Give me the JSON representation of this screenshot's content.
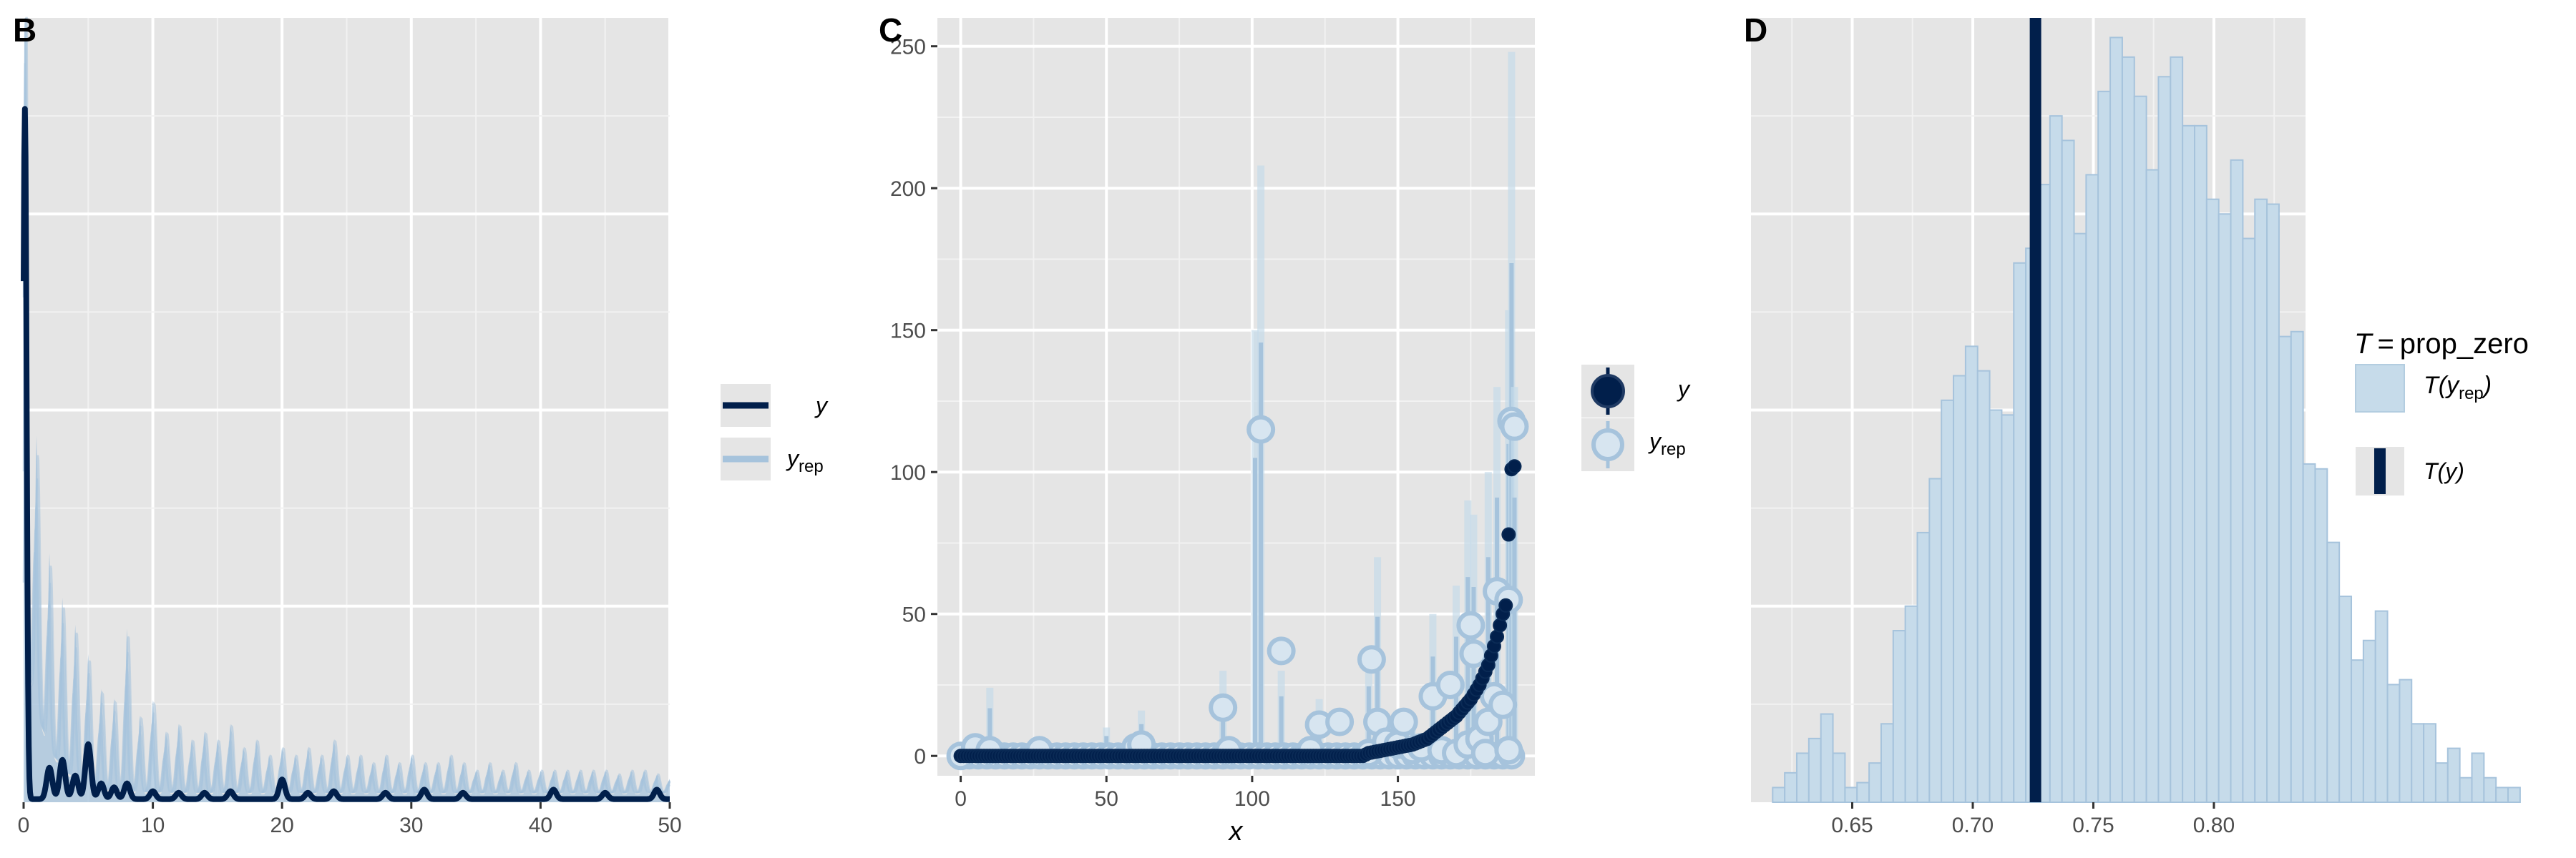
{
  "chart_data": [
    {
      "panel": "B",
      "type": "line",
      "xlim": [
        0,
        50
      ],
      "ylim": [
        0,
        1.0
      ],
      "x_ticks": [
        0,
        10,
        20,
        30,
        40,
        50
      ],
      "grid": true,
      "legend": {
        "position": "right",
        "entries": [
          {
            "label": "y",
            "color": "#011f4b"
          },
          {
            "label": "yrep",
            "label_main": "y",
            "label_sub": "rep",
            "color": "#a6c3dc"
          }
        ]
      },
      "series": [
        {
          "name": "y",
          "color": "#011f4b",
          "peaks": [
            [
              0.1,
              0.88
            ],
            [
              2,
              0.04
            ],
            [
              3,
              0.05
            ],
            [
              4,
              0.03
            ],
            [
              5,
              0.07
            ],
            [
              6,
              0.02
            ],
            [
              7,
              0.015
            ],
            [
              8,
              0.02
            ],
            [
              10,
              0.01
            ],
            [
              12,
              0.008
            ],
            [
              14,
              0.008
            ],
            [
              16,
              0.01
            ],
            [
              20,
              0.025
            ],
            [
              22,
              0.008
            ],
            [
              24,
              0.01
            ],
            [
              28,
              0.008
            ],
            [
              31,
              0.012
            ],
            [
              34,
              0.008
            ],
            [
              41,
              0.012
            ],
            [
              45,
              0.008
            ],
            [
              49,
              0.012
            ]
          ]
        },
        {
          "name": "yrep",
          "color": "#a6c3dc",
          "peaks": [
            [
              0.1,
              0.99
            ],
            [
              1,
              0.35
            ],
            [
              2,
              0.25
            ],
            [
              3,
              0.22
            ],
            [
              4,
              0.2
            ],
            [
              5,
              0.17
            ],
            [
              6,
              0.13
            ],
            [
              7,
              0.12
            ],
            [
              8,
              0.21
            ],
            [
              9,
              0.1
            ],
            [
              10,
              0.12
            ],
            [
              11,
              0.08
            ],
            [
              12,
              0.09
            ],
            [
              13,
              0.07
            ],
            [
              14,
              0.08
            ],
            [
              15,
              0.07
            ],
            [
              16,
              0.09
            ],
            [
              17,
              0.06
            ],
            [
              18,
              0.07
            ],
            [
              19,
              0.05
            ],
            [
              20,
              0.06
            ],
            [
              21,
              0.05
            ],
            [
              22,
              0.06
            ],
            [
              23,
              0.05
            ],
            [
              24,
              0.07
            ],
            [
              25,
              0.05
            ],
            [
              26,
              0.05
            ],
            [
              27,
              0.04
            ],
            [
              28,
              0.05
            ],
            [
              29,
              0.04
            ],
            [
              30,
              0.05
            ],
            [
              31,
              0.04
            ],
            [
              32,
              0.04
            ],
            [
              33,
              0.05
            ],
            [
              34,
              0.04
            ],
            [
              35,
              0.03
            ],
            [
              36,
              0.04
            ],
            [
              37,
              0.03
            ],
            [
              38,
              0.04
            ],
            [
              39,
              0.03
            ],
            [
              40,
              0.03
            ],
            [
              41,
              0.03
            ],
            [
              42,
              0.03
            ],
            [
              43,
              0.03
            ],
            [
              44,
              0.03
            ],
            [
              45,
              0.03
            ],
            [
              46,
              0.025
            ],
            [
              47,
              0.03
            ],
            [
              48,
              0.03
            ],
            [
              49,
              0.025
            ],
            [
              50,
              0.02
            ]
          ]
        }
      ]
    },
    {
      "panel": "C",
      "type": "scatter",
      "xlabel": "x",
      "xlim": [
        -8,
        197
      ],
      "ylim": [
        -7,
        260
      ],
      "x_ticks": [
        0,
        50,
        100,
        150
      ],
      "y_ticks": [
        0,
        50,
        100,
        150,
        200,
        250
      ],
      "grid": true,
      "legend": {
        "position": "right",
        "entries": [
          {
            "label": "y",
            "color": "#011f4b"
          },
          {
            "label": "yrep",
            "label_main": "y",
            "label_sub": "rep",
            "color": "#a6c3dc"
          }
        ]
      },
      "series": [
        {
          "name": "y",
          "color": "#011f4b",
          "curve": [
            [
              0,
              0
            ],
            [
              138,
              0
            ],
            [
              140,
              1
            ],
            [
              145,
              2
            ],
            [
              150,
              3
            ],
            [
              155,
              4
            ],
            [
              160,
              6
            ],
            [
              165,
              10
            ],
            [
              170,
              14
            ],
            [
              175,
              20
            ],
            [
              178,
              25
            ],
            [
              181,
              32
            ],
            [
              184,
              42
            ],
            [
              186,
              50
            ],
            [
              187,
              53
            ],
            [
              188,
              78
            ],
            [
              189,
              101
            ],
            [
              190,
              102
            ]
          ]
        },
        {
          "name": "yrep",
          "color": "#a6c3dc",
          "points": [
            [
              0,
              0
            ],
            [
              5,
              3
            ],
            [
              10,
              2
            ],
            [
              27,
              2
            ],
            [
              60,
              3
            ],
            [
              62,
              4
            ],
            [
              90,
              17
            ],
            [
              92,
              2
            ],
            [
              103,
              115
            ],
            [
              110,
              37
            ],
            [
              120,
              2
            ],
            [
              123,
              11
            ],
            [
              130,
              12
            ],
            [
              140,
              1
            ],
            [
              141,
              34
            ],
            [
              143,
              12
            ],
            [
              146,
              5
            ],
            [
              150,
              4
            ],
            [
              152,
              12
            ],
            [
              155,
              2
            ],
            [
              158,
              3
            ],
            [
              162,
              21
            ],
            [
              165,
              2
            ],
            [
              168,
              25
            ],
            [
              170,
              1
            ],
            [
              174,
              4
            ],
            [
              175,
              46
            ],
            [
              176,
              36
            ],
            [
              178,
              6
            ],
            [
              180,
              1
            ],
            [
              181,
              12
            ],
            [
              183,
              21
            ],
            [
              184,
              58
            ],
            [
              186,
              18
            ],
            [
              188,
              2
            ],
            [
              189,
              118
            ],
            [
              190,
              116
            ],
            [
              188,
              55
            ]
          ],
          "intervals": [
            [
              0,
              0,
              5
            ],
            [
              10,
              0,
              24
            ],
            [
              50,
              0,
              10
            ],
            [
              62,
              0,
              16
            ],
            [
              90,
              0,
              30
            ],
            [
              101,
              0,
              150
            ],
            [
              103,
              0,
              208
            ],
            [
              110,
              0,
              30
            ],
            [
              123,
              0,
              20
            ],
            [
              140,
              0,
              35
            ],
            [
              143,
              0,
              70
            ],
            [
              155,
              0,
              15
            ],
            [
              162,
              0,
              50
            ],
            [
              170,
              0,
              60
            ],
            [
              174,
              0,
              90
            ],
            [
              176,
              0,
              85
            ],
            [
              181,
              0,
              100
            ],
            [
              184,
              0,
              130
            ],
            [
              188,
              0,
              157
            ],
            [
              189,
              0,
              248
            ],
            [
              190,
              0,
              130
            ]
          ]
        }
      ]
    },
    {
      "panel": "D",
      "type": "bar",
      "stat": "T = prop_zero",
      "xlim": [
        0.608,
        0.838
      ],
      "ylim": [
        0,
        160
      ],
      "x_ticks": [
        0.65,
        0.7,
        0.75,
        0.8
      ],
      "x_tick_labels": [
        "0.65",
        "0.70",
        "0.75",
        "0.80"
      ],
      "grid": true,
      "bin_start": 0.617,
      "bin_width": 0.005,
      "counts": [
        3,
        6,
        10,
        13,
        18,
        10,
        3,
        4,
        8,
        16,
        35,
        40,
        55,
        66,
        82,
        87,
        93,
        88,
        80,
        79,
        110,
        113,
        126,
        140,
        135,
        116,
        128,
        145,
        156,
        152,
        144,
        129,
        148,
        152,
        138,
        138,
        123,
        120,
        131,
        115,
        123,
        122,
        95,
        96,
        69,
        68,
        53,
        42,
        29,
        33,
        39,
        24,
        25,
        16,
        16,
        8,
        11,
        5,
        10,
        5,
        3,
        3
      ],
      "observed_value": 0.726,
      "bar_color": "#c6dbea",
      "observed_color": "#011f4b",
      "legend": {
        "position": "right",
        "title": "T = prop_zero",
        "title_main": "T",
        "title_eq": "=",
        "title_stat": "prop_zero",
        "entries": [
          {
            "label": "T(yrep)",
            "label_main": "T(y",
            "label_sub": "rep",
            "label_close": ")"
          },
          {
            "label": "T(y)"
          }
        ]
      }
    }
  ],
  "panels": {
    "B": {
      "letter": "B",
      "x_tick_labels": [
        "0",
        "10",
        "20",
        "30",
        "40",
        "50"
      ]
    },
    "C": {
      "letter": "C",
      "x_tick_labels": [
        "0",
        "50",
        "100",
        "150"
      ],
      "y_tick_labels": [
        "0",
        "50",
        "100",
        "150",
        "200",
        "250"
      ],
      "xlabel": "x"
    },
    "D": {
      "letter": "D",
      "x_tick_labels": [
        "0.65",
        "0.70",
        "0.75",
        "0.80"
      ]
    }
  },
  "legend_labels": {
    "y_label": "y",
    "y_main": "y",
    "rep_sub": "rep",
    "T_label": "T",
    "prop_zero": "prop_zero",
    "T_y": "T(y)"
  },
  "colors": {
    "panel_bg": "#e5e5e5",
    "grid_major": "#ffffff",
    "dark": "#011f4b",
    "light": "#a6c3dc",
    "lighter": "#c6dbea",
    "tick_text": "#4d4d4d"
  }
}
